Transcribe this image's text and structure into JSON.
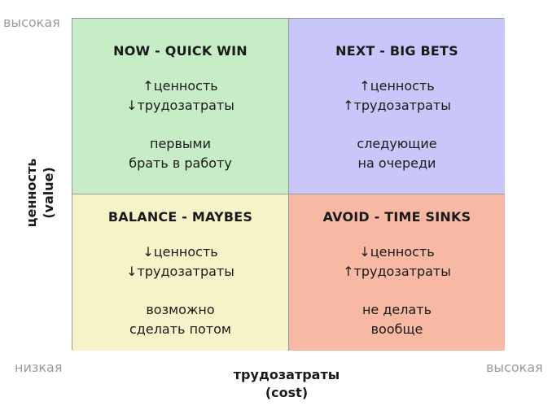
{
  "axes": {
    "y_high": "высокая",
    "low": "низкая",
    "x_high": "высокая",
    "x_title": "трудозатраты",
    "x_subtitle": "(cost)",
    "y_title": "ценность",
    "y_subtitle": "(value)"
  },
  "quadrants": {
    "top_left": {
      "title": "NOW - QUICK WIN",
      "line1": "↑ценность",
      "line2": "↓трудозатраты",
      "note1": "первыми",
      "note2": "брать в работу",
      "color": "#c7edc7"
    },
    "top_right": {
      "title": "NEXT - BIG BETS",
      "line1": "↑ценность",
      "line2": "↑трудозатраты",
      "note1": "следующие",
      "note2": "на очереди",
      "color": "#c9c7f9"
    },
    "bottom_left": {
      "title": "BALANCE - MAYBES",
      "line1": "↓ценность",
      "line2": "↓трудозатраты",
      "note1": "возможно",
      "note2": "сделать потом",
      "color": "#f7f3c9"
    },
    "bottom_right": {
      "title": "AVOID - TIME SINKS",
      "line1": "↓ценность",
      "line2": "↑трудозатраты",
      "note1": "не делать",
      "note2": "вообще",
      "color": "#f7b8a4"
    }
  }
}
